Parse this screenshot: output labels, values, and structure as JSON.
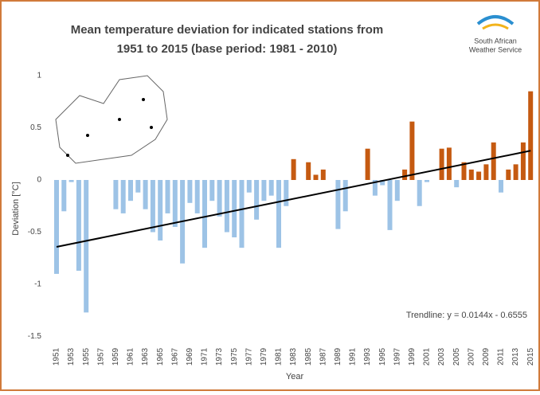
{
  "chart_data": {
    "type": "bar",
    "title": [
      "Mean temperature deviation for indicated stations from",
      "1951 to 2015  (base period: 1981 - 2010)"
    ],
    "logo": [
      "South African",
      "Weather Service"
    ],
    "x_label": "Year",
    "y_label": "Deviation [°C]",
    "categories": [
      "1951",
      null,
      "1953",
      null,
      "1955",
      null,
      "1957",
      null,
      "1959",
      null,
      "1961",
      null,
      "1963",
      null,
      "1965",
      null,
      "1967",
      null,
      "1969",
      null,
      "1971",
      null,
      "1973",
      null,
      "1975",
      null,
      "1977",
      null,
      "1979",
      null,
      "1981",
      null,
      "1983",
      null,
      "1985",
      null,
      "1987",
      null,
      "1989",
      null,
      "1991",
      null,
      "1993",
      null,
      "1995",
      null,
      "1997",
      null,
      "1999",
      null,
      "2001",
      null,
      "2003",
      null,
      "2005",
      null,
      "2007",
      null,
      "2009",
      null,
      "2011",
      null,
      "2013",
      null,
      "2015"
    ],
    "values": [
      -0.9,
      -0.3,
      -0.02,
      -0.87,
      -1.27,
      0,
      0,
      0,
      -0.28,
      -0.32,
      -0.2,
      -0.12,
      -0.28,
      -0.5,
      -0.58,
      -0.32,
      -0.45,
      -0.8,
      -0.22,
      -0.32,
      -0.65,
      -0.2,
      -0.35,
      -0.5,
      -0.55,
      -0.65,
      -0.12,
      -0.38,
      -0.2,
      -0.15,
      -0.65,
      -0.25,
      0.2,
      0,
      0.17,
      0.05,
      0.1,
      0,
      -0.47,
      -0.3,
      0,
      0,
      0.3,
      -0.15,
      -0.05,
      -0.48,
      -0.2,
      0.1,
      0.56,
      -0.25,
      -0.02,
      0,
      0.3,
      0.31,
      -0.07,
      0.17,
      0.1,
      0.08,
      0.15,
      0.36,
      -0.12,
      0.1,
      0.15,
      0.36,
      0.85
    ],
    "colors": {
      "positive": "#c55a11",
      "negative": "#9dc3e6"
    },
    "ylim": [
      -1.5,
      1.1
    ],
    "yticks": [
      1,
      0.5,
      0,
      -0.5,
      -1,
      -1.5
    ],
    "trendline": {
      "label": "Trendline: y = 0.0144x - 0.6555",
      "slope": 0.0144,
      "intercept": -0.6555,
      "color": "#000000"
    }
  }
}
